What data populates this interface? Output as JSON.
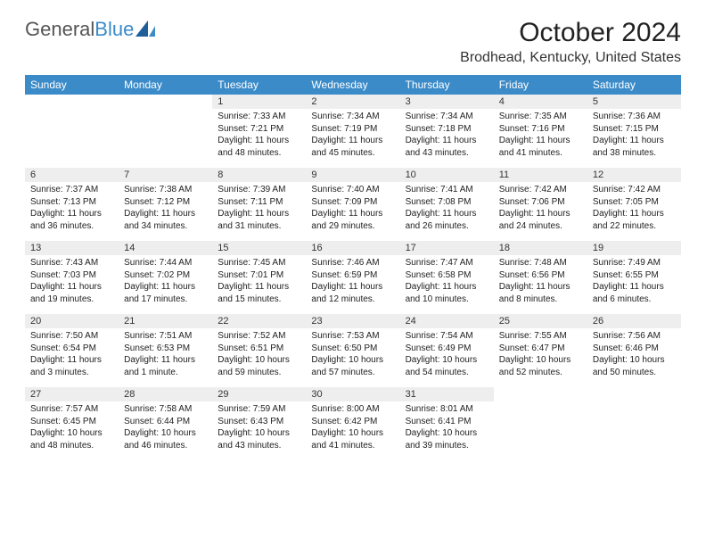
{
  "logo": {
    "word1": "General",
    "word2": "Blue"
  },
  "title": "October 2024",
  "location": "Brodhead, Kentucky, United States",
  "header_bg": "#3b8bc9",
  "daynum_bg": "#eeeeee",
  "text_color": "#222222",
  "font_size_title": 30,
  "font_size_location": 16,
  "font_size_header": 12,
  "font_size_daynum": 11,
  "font_size_cell": 10,
  "day_headers": [
    "Sunday",
    "Monday",
    "Tuesday",
    "Wednesday",
    "Thursday",
    "Friday",
    "Saturday"
  ],
  "weeks": [
    [
      null,
      null,
      {
        "n": "1",
        "sunrise": "7:33 AM",
        "sunset": "7:21 PM",
        "daylight": "11 hours and 48 minutes."
      },
      {
        "n": "2",
        "sunrise": "7:34 AM",
        "sunset": "7:19 PM",
        "daylight": "11 hours and 45 minutes."
      },
      {
        "n": "3",
        "sunrise": "7:34 AM",
        "sunset": "7:18 PM",
        "daylight": "11 hours and 43 minutes."
      },
      {
        "n": "4",
        "sunrise": "7:35 AM",
        "sunset": "7:16 PM",
        "daylight": "11 hours and 41 minutes."
      },
      {
        "n": "5",
        "sunrise": "7:36 AM",
        "sunset": "7:15 PM",
        "daylight": "11 hours and 38 minutes."
      }
    ],
    [
      {
        "n": "6",
        "sunrise": "7:37 AM",
        "sunset": "7:13 PM",
        "daylight": "11 hours and 36 minutes."
      },
      {
        "n": "7",
        "sunrise": "7:38 AM",
        "sunset": "7:12 PM",
        "daylight": "11 hours and 34 minutes."
      },
      {
        "n": "8",
        "sunrise": "7:39 AM",
        "sunset": "7:11 PM",
        "daylight": "11 hours and 31 minutes."
      },
      {
        "n": "9",
        "sunrise": "7:40 AM",
        "sunset": "7:09 PM",
        "daylight": "11 hours and 29 minutes."
      },
      {
        "n": "10",
        "sunrise": "7:41 AM",
        "sunset": "7:08 PM",
        "daylight": "11 hours and 26 minutes."
      },
      {
        "n": "11",
        "sunrise": "7:42 AM",
        "sunset": "7:06 PM",
        "daylight": "11 hours and 24 minutes."
      },
      {
        "n": "12",
        "sunrise": "7:42 AM",
        "sunset": "7:05 PM",
        "daylight": "11 hours and 22 minutes."
      }
    ],
    [
      {
        "n": "13",
        "sunrise": "7:43 AM",
        "sunset": "7:03 PM",
        "daylight": "11 hours and 19 minutes."
      },
      {
        "n": "14",
        "sunrise": "7:44 AM",
        "sunset": "7:02 PM",
        "daylight": "11 hours and 17 minutes."
      },
      {
        "n": "15",
        "sunrise": "7:45 AM",
        "sunset": "7:01 PM",
        "daylight": "11 hours and 15 minutes."
      },
      {
        "n": "16",
        "sunrise": "7:46 AM",
        "sunset": "6:59 PM",
        "daylight": "11 hours and 12 minutes."
      },
      {
        "n": "17",
        "sunrise": "7:47 AM",
        "sunset": "6:58 PM",
        "daylight": "11 hours and 10 minutes."
      },
      {
        "n": "18",
        "sunrise": "7:48 AM",
        "sunset": "6:56 PM",
        "daylight": "11 hours and 8 minutes."
      },
      {
        "n": "19",
        "sunrise": "7:49 AM",
        "sunset": "6:55 PM",
        "daylight": "11 hours and 6 minutes."
      }
    ],
    [
      {
        "n": "20",
        "sunrise": "7:50 AM",
        "sunset": "6:54 PM",
        "daylight": "11 hours and 3 minutes."
      },
      {
        "n": "21",
        "sunrise": "7:51 AM",
        "sunset": "6:53 PM",
        "daylight": "11 hours and 1 minute."
      },
      {
        "n": "22",
        "sunrise": "7:52 AM",
        "sunset": "6:51 PM",
        "daylight": "10 hours and 59 minutes."
      },
      {
        "n": "23",
        "sunrise": "7:53 AM",
        "sunset": "6:50 PM",
        "daylight": "10 hours and 57 minutes."
      },
      {
        "n": "24",
        "sunrise": "7:54 AM",
        "sunset": "6:49 PM",
        "daylight": "10 hours and 54 minutes."
      },
      {
        "n": "25",
        "sunrise": "7:55 AM",
        "sunset": "6:47 PM",
        "daylight": "10 hours and 52 minutes."
      },
      {
        "n": "26",
        "sunrise": "7:56 AM",
        "sunset": "6:46 PM",
        "daylight": "10 hours and 50 minutes."
      }
    ],
    [
      {
        "n": "27",
        "sunrise": "7:57 AM",
        "sunset": "6:45 PM",
        "daylight": "10 hours and 48 minutes."
      },
      {
        "n": "28",
        "sunrise": "7:58 AM",
        "sunset": "6:44 PM",
        "daylight": "10 hours and 46 minutes."
      },
      {
        "n": "29",
        "sunrise": "7:59 AM",
        "sunset": "6:43 PM",
        "daylight": "10 hours and 43 minutes."
      },
      {
        "n": "30",
        "sunrise": "8:00 AM",
        "sunset": "6:42 PM",
        "daylight": "10 hours and 41 minutes."
      },
      {
        "n": "31",
        "sunrise": "8:01 AM",
        "sunset": "6:41 PM",
        "daylight": "10 hours and 39 minutes."
      },
      null,
      null
    ]
  ]
}
